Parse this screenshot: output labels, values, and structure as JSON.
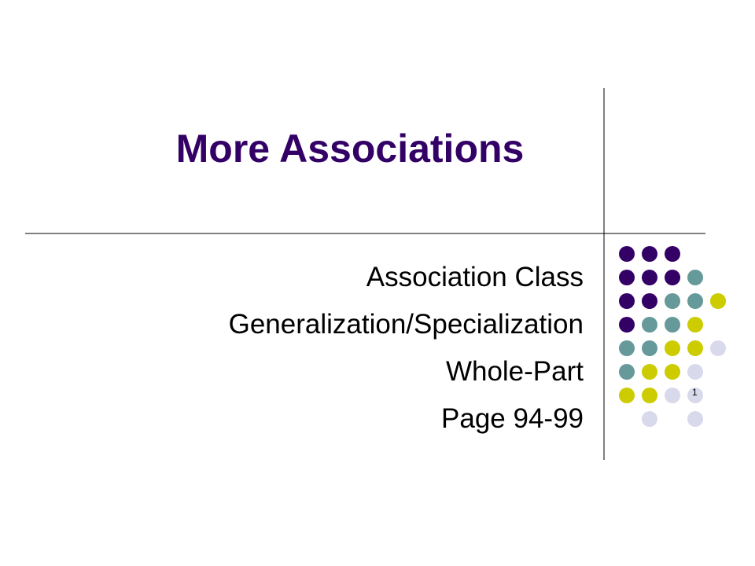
{
  "title": "More Associations",
  "subtitle_lines": [
    "Association Class",
    "Generalization/Specialization",
    "Whole-Part",
    "Page 94-99"
  ],
  "slide_number": "1"
}
